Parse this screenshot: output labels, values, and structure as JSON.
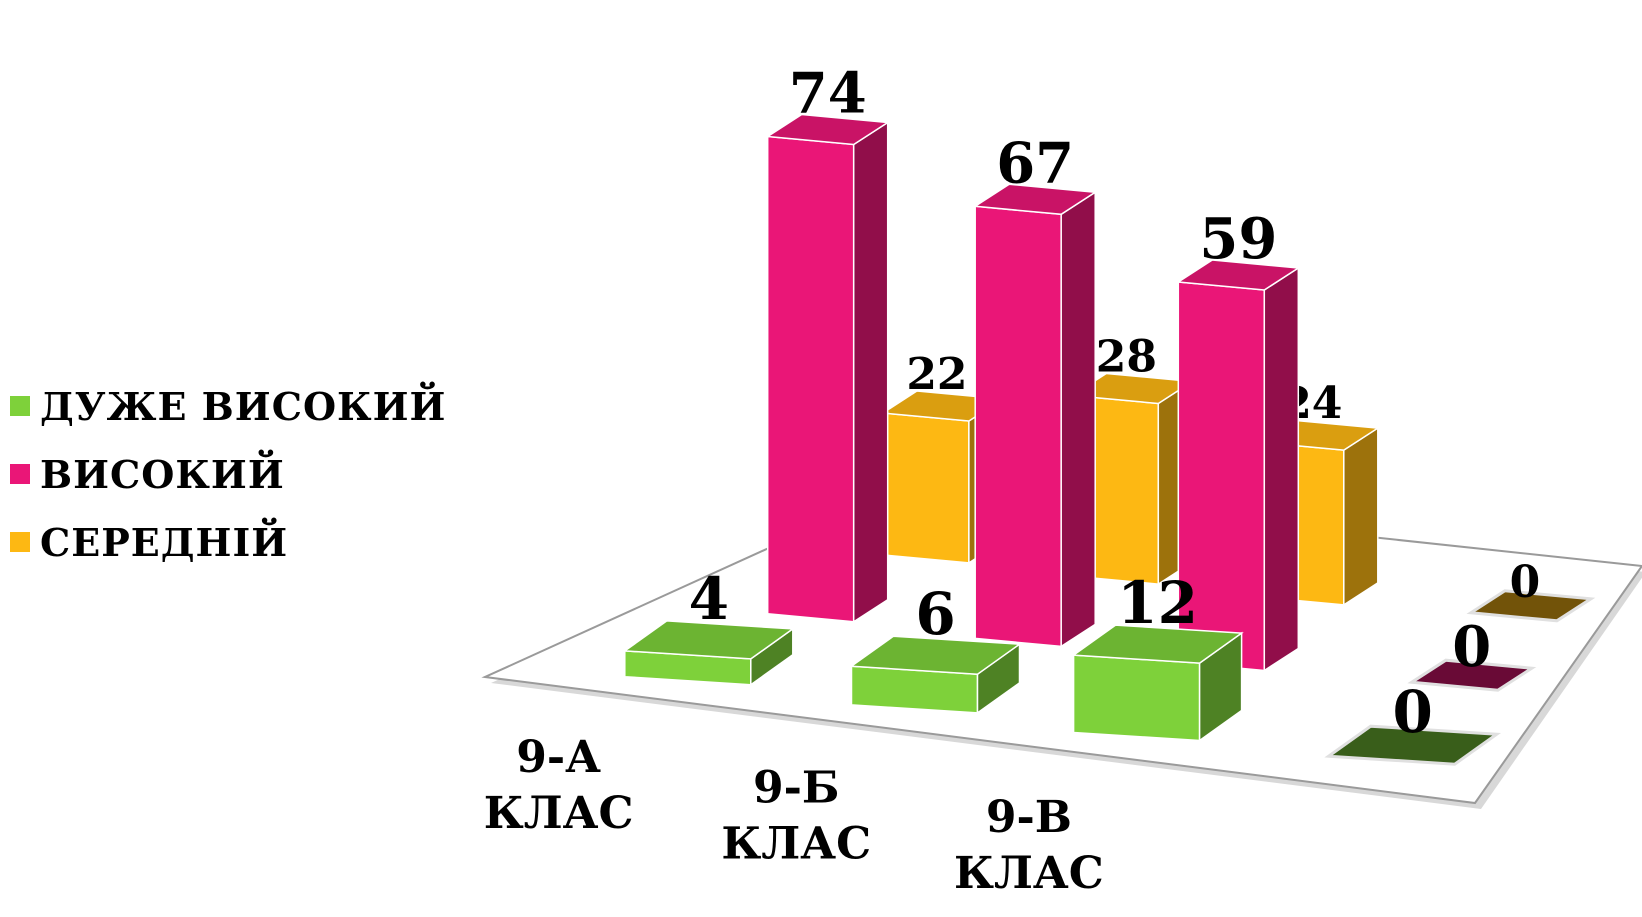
{
  "chart_data": {
    "type": "bar",
    "title": "",
    "categories": [
      "9-А КЛАС",
      "9-Б КЛАС",
      "9-В КЛАС",
      ""
    ],
    "category_lines": [
      [
        "9-А",
        "КЛАС"
      ],
      [
        "9-Б",
        "КЛАС"
      ],
      [
        "9-В",
        "КЛАС"
      ],
      []
    ],
    "series": [
      {
        "name": "ДУЖЕ ВИСОКИЙ",
        "values": [
          4,
          6,
          12,
          0
        ],
        "color": "#7ED13A"
      },
      {
        "name": "ВИСОКИЙ",
        "values": [
          74,
          67,
          59,
          0
        ],
        "color": "#EA1677"
      },
      {
        "name": "СЕРЕДНІЙ",
        "values": [
          22,
          28,
          24,
          0
        ],
        "color": "#FDB813"
      }
    ],
    "legend_position": "left",
    "grid": false,
    "style": "3d-column"
  }
}
